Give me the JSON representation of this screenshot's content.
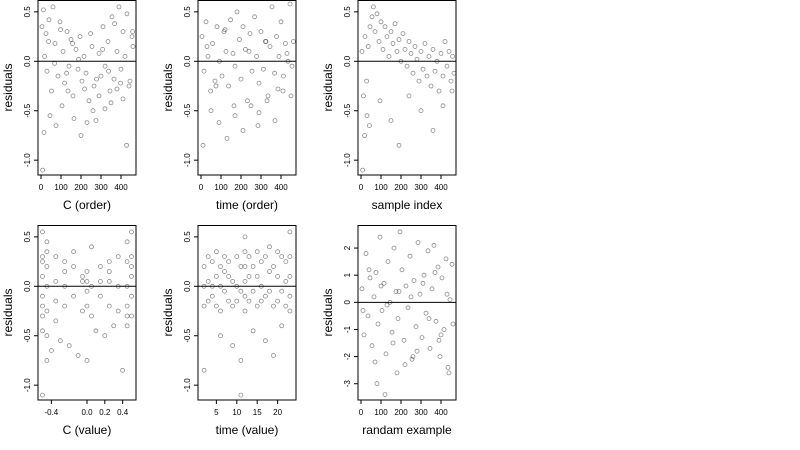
{
  "figure": {
    "background": "#ffffff",
    "point_color": "#000000",
    "point_opacity": 0.45,
    "reference_line": 0
  },
  "chart_data": [
    {
      "type": "scatter",
      "xlabel": "C (order)",
      "ylabel": "residuals",
      "xlim": [
        -15,
        475
      ],
      "ylim": [
        -1.15,
        0.62
      ],
      "xticks": [
        0,
        100,
        200,
        300,
        400
      ],
      "xtick_labels": [
        "0",
        "100",
        "200",
        "300",
        "400"
      ],
      "yticks": [
        -1.0,
        -0.5,
        0.0,
        0.5
      ],
      "ytick_labels": [
        "-1.0",
        "-0.5",
        "0.0",
        "0.5"
      ],
      "reference_line_y": 0,
      "grid": false,
      "legend": false,
      "series": [
        {
          "x": [
            5,
            12,
            18,
            25,
            30,
            40,
            52,
            60,
            70,
            85,
            95,
            110,
            118,
            130,
            140,
            150,
            160,
            175,
            185,
            195,
            205,
            215,
            225,
            240,
            255,
            265,
            275,
            290,
            300,
            310,
            320,
            335,
            345,
            355,
            365,
            380,
            390,
            400,
            410,
            420,
            430,
            445,
            455,
            460,
            15,
            45,
            75,
            105,
            135,
            165,
            200,
            230,
            260,
            290,
            320,
            350,
            380,
            410,
            440,
            8,
            38,
            68,
            98,
            128,
            158,
            188,
            218,
            248,
            278,
            308,
            338,
            368,
            398,
            428,
            458
          ],
          "y": [
            0.35,
            0.52,
            0.05,
            0.28,
            -0.1,
            0.42,
            -0.3,
            0.55,
            0.18,
            -0.15,
            0.4,
            0.1,
            -0.22,
            0.3,
            -0.05,
            0.22,
            -0.35,
            0.12,
            -0.08,
            0.25,
            -0.2,
            0.05,
            -0.12,
            -0.4,
            0.15,
            -0.25,
            -0.6,
            0.08,
            -0.15,
            0.35,
            -0.05,
            0.2,
            -0.3,
            0.45,
            -0.18,
            0.1,
            0.55,
            -0.08,
            0.3,
            0.05,
            0.48,
            -0.2,
            0.25,
            0.15,
            -0.72,
            -0.55,
            -0.65,
            -0.45,
            -0.3,
            -0.58,
            -0.75,
            -0.62,
            -0.5,
            -0.35,
            -0.48,
            -0.42,
            -0.28,
            -0.38,
            -0.25,
            -1.1,
            0.2,
            -0.02,
            0.32,
            -0.12,
            0.18,
            0.02,
            -0.28,
            0.28,
            -0.18,
            0.12,
            -0.1,
            0.38,
            -0.22,
            -0.85,
            0.3
          ]
        }
      ]
    },
    {
      "type": "scatter",
      "xlabel": "time (order)",
      "ylabel": "residuals",
      "xlim": [
        -15,
        475
      ],
      "ylim": [
        -1.15,
        0.62
      ],
      "xticks": [
        0,
        100,
        200,
        300,
        400
      ],
      "xtick_labels": [
        "0",
        "100",
        "200",
        "300",
        "400"
      ],
      "yticks": [
        -1.0,
        -0.5,
        0.0,
        0.5
      ],
      "ytick_labels": [
        "-1.0",
        "-0.5",
        "0.0",
        "0.5"
      ],
      "reference_line_y": 0,
      "grid": false,
      "legend": false,
      "series": [
        {
          "x": [
            5,
            15,
            25,
            35,
            48,
            58,
            70,
            80,
            92,
            105,
            115,
            125,
            138,
            148,
            160,
            170,
            180,
            192,
            200,
            210,
            222,
            232,
            245,
            255,
            268,
            278,
            290,
            300,
            312,
            322,
            335,
            345,
            355,
            368,
            378,
            390,
            400,
            412,
            422,
            435,
            445,
            455,
            462,
            10,
            50,
            90,
            130,
            170,
            210,
            250,
            290,
            330,
            370,
            410,
            450,
            30,
            75,
            120,
            165,
            240,
            285,
            325,
            385,
            430
          ],
          "y": [
            0.25,
            -0.1,
            0.4,
            0.05,
            -0.3,
            0.18,
            -0.2,
            0.35,
            0.0,
            -0.15,
            0.3,
            0.1,
            -0.25,
            0.42,
            0.08,
            -0.05,
            0.5,
            0.22,
            -0.18,
            0.35,
            0.12,
            -0.4,
            0.28,
            -0.1,
            0.45,
            0.05,
            -0.22,
            0.3,
            -0.08,
            0.2,
            -0.35,
            0.15,
            0.55,
            -0.12,
            0.25,
            0.05,
            0.4,
            -0.15,
            0.18,
            0.0,
            0.58,
            -0.05,
            0.2,
            -0.85,
            -0.5,
            -0.62,
            -0.78,
            -0.55,
            -0.7,
            -0.45,
            -0.52,
            -0.4,
            -0.6,
            -0.3,
            -0.35,
            0.15,
            -0.25,
            0.32,
            -0.45,
            0.1,
            -0.65,
            0.2,
            -0.28,
            0.08
          ]
        }
      ]
    },
    {
      "type": "scatter",
      "xlabel": "sample index",
      "ylabel": "residuals",
      "xlim": [
        -15,
        475
      ],
      "ylim": [
        -1.15,
        0.62
      ],
      "xticks": [
        0,
        100,
        200,
        300,
        400
      ],
      "xtick_labels": [
        "0",
        "100",
        "200",
        "300",
        "400"
      ],
      "yticks": [
        -1.0,
        -0.5,
        0.0,
        0.5
      ],
      "ytick_labels": [
        "-1.0",
        "-0.5",
        "0.0",
        "0.5"
      ],
      "reference_line_y": 0,
      "grid": false,
      "legend": false,
      "series": [
        {
          "x": [
            5,
            12,
            20,
            28,
            36,
            45,
            55,
            62,
            70,
            80,
            90,
            100,
            110,
            120,
            130,
            140,
            150,
            160,
            170,
            180,
            190,
            200,
            210,
            220,
            230,
            240,
            250,
            260,
            270,
            280,
            290,
            300,
            310,
            320,
            330,
            340,
            350,
            360,
            370,
            380,
            390,
            400,
            410,
            420,
            430,
            440,
            450,
            458,
            465,
            8,
            18,
            30,
            42,
            95,
            150,
            190,
            240,
            300,
            360,
            410,
            455
          ],
          "y": [
            0.1,
            -0.35,
            0.25,
            -0.2,
            0.15,
            0.35,
            0.45,
            0.55,
            0.3,
            0.48,
            0.2,
            0.4,
            0.12,
            0.35,
            0.25,
            0.05,
            0.3,
            0.18,
            0.38,
            0.1,
            0.22,
            0.0,
            0.28,
            0.12,
            -0.05,
            0.2,
            0.08,
            -0.12,
            0.15,
            0.02,
            -0.2,
            0.1,
            -0.08,
            0.18,
            -0.15,
            0.05,
            -0.25,
            0.12,
            -0.1,
            0.0,
            -0.3,
            0.08,
            -0.15,
            0.2,
            -0.05,
            0.1,
            -0.2,
            0.05,
            -0.12,
            -1.1,
            -0.75,
            -0.55,
            -0.65,
            -0.4,
            -0.6,
            -0.85,
            -0.35,
            -0.5,
            -0.7,
            -0.45,
            -0.3
          ]
        }
      ]
    },
    {
      "type": "scatter",
      "xlabel": "C (value)",
      "ylabel": "residuals",
      "xlim": [
        -0.55,
        0.55
      ],
      "ylim": [
        -1.15,
        0.62
      ],
      "xticks": [
        -0.4,
        0.0,
        0.2,
        0.4
      ],
      "xtick_labels": [
        "-0.4",
        "0.0",
        "0.2",
        "0.4"
      ],
      "yticks": [
        -1.0,
        -0.5,
        0.0,
        0.5
      ],
      "ytick_labels": [
        "-1.0",
        "-0.5",
        "0.0",
        "0.5"
      ],
      "reference_line_y": 0,
      "grid": false,
      "legend": false,
      "series": [
        {
          "x": [
            -0.5,
            -0.5,
            -0.5,
            -0.5,
            -0.5,
            -0.5,
            -0.5,
            -0.5,
            -0.45,
            -0.45,
            -0.45,
            -0.45,
            -0.45,
            -0.45,
            -0.35,
            -0.35,
            -0.35,
            -0.35,
            -0.25,
            -0.25,
            -0.25,
            -0.25,
            -0.15,
            -0.15,
            -0.15,
            -0.05,
            -0.05,
            -0.05,
            0.0,
            0.0,
            0.0,
            0.0,
            0.05,
            0.05,
            0.05,
            0.15,
            0.15,
            0.15,
            0.25,
            0.25,
            0.25,
            0.25,
            0.35,
            0.35,
            0.35,
            0.45,
            0.45,
            0.45,
            0.45,
            0.45,
            0.5,
            0.5,
            0.5,
            0.5,
            0.5,
            0.5,
            -0.5,
            -0.45,
            -0.4,
            -0.3,
            -0.2,
            -0.1,
            0.0,
            0.1,
            0.2,
            0.3,
            0.4,
            0.45
          ],
          "y": [
            0.55,
            0.3,
            0.1,
            -0.1,
            -0.3,
            -0.45,
            0.25,
            -0.2,
            0.45,
            0.2,
            0.0,
            -0.25,
            -0.5,
            0.35,
            0.3,
            0.05,
            -0.15,
            -0.35,
            0.25,
            0.0,
            -0.2,
            0.15,
            0.2,
            -0.1,
            0.35,
            0.1,
            -0.25,
            0.05,
            0.15,
            -0.05,
            -0.2,
            0.05,
            0.4,
            0.0,
            -0.3,
            0.2,
            -0.1,
            0.05,
            0.25,
            0.05,
            -0.2,
            0.15,
            0.3,
            0.0,
            -0.25,
            0.45,
            0.25,
            0.0,
            -0.2,
            -0.4,
            0.55,
            0.3,
            0.1,
            -0.1,
            -0.3,
            0.2,
            -1.1,
            -0.75,
            -0.65,
            -0.55,
            -0.6,
            -0.7,
            -0.75,
            -0.45,
            -0.5,
            -0.4,
            -0.85,
            -0.3
          ]
        }
      ]
    },
    {
      "type": "scatter",
      "xlabel": "time (value)",
      "ylabel": "residuals",
      "xlim": [
        0.5,
        24.5
      ],
      "ylim": [
        -1.15,
        0.62
      ],
      "xticks": [
        5,
        10,
        15,
        20
      ],
      "xtick_labels": [
        "5",
        "10",
        "15",
        "20"
      ],
      "yticks": [
        -1.0,
        -0.5,
        0.0,
        0.5
      ],
      "ytick_labels": [
        "-1.0",
        "-0.5",
        "0.0",
        "0.5"
      ],
      "reference_line_y": 0,
      "grid": false,
      "legend": false,
      "series": [
        {
          "x": [
            2,
            2,
            2,
            3,
            3,
            3,
            4,
            4,
            4,
            5,
            5,
            5,
            6,
            6,
            6,
            7,
            7,
            7,
            8,
            8,
            8,
            9,
            9,
            10,
            10,
            10,
            11,
            11,
            12,
            12,
            12,
            12,
            12,
            12,
            13,
            13,
            13,
            14,
            14,
            15,
            15,
            15,
            16,
            16,
            16,
            17,
            17,
            18,
            18,
            18,
            19,
            19,
            20,
            20,
            20,
            21,
            21,
            22,
            22,
            22,
            23,
            23,
            23,
            23,
            23,
            2,
            6,
            9,
            11,
            14,
            17,
            19,
            21,
            11
          ],
          "y": [
            0.2,
            0.0,
            -0.2,
            0.3,
            0.05,
            -0.15,
            0.25,
            0.0,
            -0.1,
            0.35,
            0.1,
            -0.2,
            0.2,
            0.0,
            -0.25,
            0.15,
            -0.05,
            0.3,
            0.1,
            -0.15,
            0.25,
            0.05,
            -0.2,
            0.3,
            0.0,
            -0.15,
            0.2,
            -0.05,
            0.5,
            0.35,
            0.2,
            0.05,
            -0.1,
            -0.25,
            0.3,
            0.1,
            -0.15,
            0.2,
            -0.05,
            0.35,
            0.1,
            -0.2,
            0.25,
            0.0,
            -0.15,
            0.3,
            -0.1,
            0.4,
            0.15,
            -0.05,
            0.2,
            -0.2,
            0.35,
            0.1,
            -0.15,
            0.3,
            -0.05,
            0.25,
            0.05,
            -0.2,
            0.55,
            0.3,
            0.1,
            -0.1,
            -0.25,
            -0.85,
            -0.5,
            -0.6,
            -0.75,
            -0.45,
            -0.55,
            -0.7,
            -0.4,
            -1.1
          ]
        }
      ]
    },
    {
      "type": "scatter",
      "xlabel": "randam example",
      "ylabel": "residuals",
      "xlim": [
        -15,
        475
      ],
      "ylim": [
        -3.6,
        2.85
      ],
      "xticks": [
        0,
        100,
        200,
        300,
        400
      ],
      "xtick_labels": [
        "0",
        "100",
        "200",
        "300",
        "400"
      ],
      "yticks": [
        -3,
        -2,
        -1,
        0,
        1,
        2
      ],
      "ytick_labels": [
        "-3",
        "-2",
        "-1",
        "0",
        "1",
        "2"
      ],
      "reference_line_y": 0,
      "grid": false,
      "legend": false,
      "series": [
        {
          "x": [
            5,
            15,
            25,
            35,
            45,
            55,
            65,
            75,
            85,
            95,
            105,
            115,
            125,
            135,
            145,
            155,
            165,
            175,
            185,
            195,
            205,
            215,
            225,
            235,
            245,
            255,
            265,
            275,
            285,
            295,
            305,
            315,
            325,
            335,
            345,
            355,
            365,
            375,
            385,
            395,
            405,
            415,
            425,
            435,
            445,
            455,
            10,
            40,
            70,
            100,
            130,
            160,
            190,
            220,
            250,
            280,
            310,
            340,
            370,
            400,
            430,
            460,
            80,
            120,
            180,
            260,
            390,
            440
          ],
          "y": [
            0.5,
            -1.2,
            1.8,
            -0.5,
            0.9,
            -1.6,
            0.2,
            1.1,
            -0.8,
            2.4,
            -0.3,
            0.7,
            -1.9,
            1.5,
            0.0,
            -1.1,
            2.0,
            0.4,
            -0.6,
            2.6,
            1.2,
            -1.4,
            0.6,
            -0.2,
            1.7,
            -2.1,
            0.8,
            -0.9,
            2.2,
            0.3,
            -1.3,
            1.0,
            -0.4,
            1.9,
            -1.7,
            0.5,
            2.1,
            -0.7,
            1.3,
            -2.0,
            0.9,
            -1.0,
            1.6,
            -2.4,
            0.1,
            1.4,
            -0.3,
            1.2,
            -2.2,
            0.6,
            -0.1,
            -1.5,
            0.4,
            -2.3,
            0.2,
            -1.8,
            0.7,
            -0.6,
            1.1,
            -1.2,
            0.3,
            -0.8,
            -3.0,
            -3.4,
            -2.6,
            -2.0,
            -1.4,
            -2.6
          ]
        }
      ]
    }
  ]
}
